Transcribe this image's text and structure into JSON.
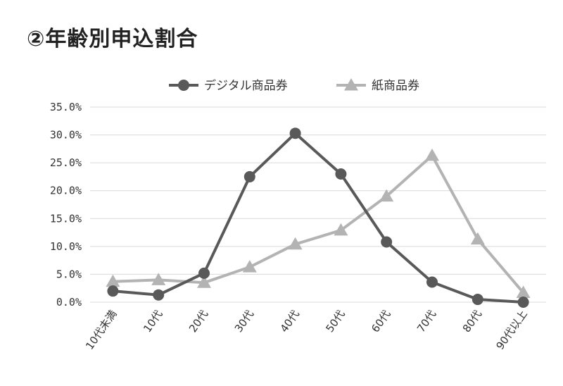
{
  "title": "②年齢別申込割合",
  "chart_data": {
    "type": "line",
    "title": "②年齢別申込割合",
    "xlabel": "",
    "ylabel": "",
    "categories": [
      "10代未満",
      "10代",
      "20代",
      "30代",
      "40代",
      "50代",
      "60代",
      "70代",
      "80代",
      "90代以上"
    ],
    "ylim": [
      0,
      35
    ],
    "yticks": [
      "0.0%",
      "5.0%",
      "10.0%",
      "15.0%",
      "20.0%",
      "25.0%",
      "30.0%",
      "35.0%"
    ],
    "grid": true,
    "legend_position": "top",
    "series": [
      {
        "name": "デジタル商品券",
        "marker": "circle",
        "color": "#595959",
        "values": [
          2.0,
          1.3,
          5.2,
          22.5,
          30.3,
          23.0,
          10.8,
          3.6,
          0.5,
          0.0
        ]
      },
      {
        "name": "紙商品券",
        "marker": "triangle",
        "color": "#b3b3b3",
        "values": [
          3.7,
          4.0,
          3.5,
          6.3,
          10.4,
          12.9,
          19.0,
          26.3,
          11.3,
          1.7
        ]
      }
    ]
  }
}
